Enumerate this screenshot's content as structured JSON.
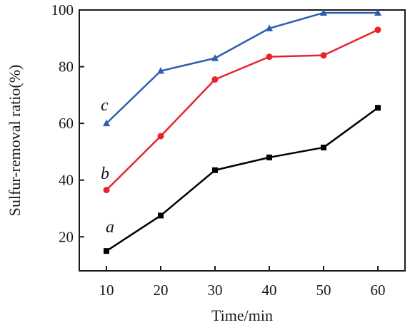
{
  "chart_data": {
    "type": "line",
    "xlabel": "Time/min",
    "ylabel": "Sulfur-removal ratio(%)",
    "xlim": [
      5,
      65
    ],
    "ylim": [
      8,
      100
    ],
    "xticks": [
      10,
      20,
      30,
      40,
      50,
      60
    ],
    "yticks": [
      20,
      40,
      60,
      80,
      100
    ],
    "grid": false,
    "x": [
      10,
      20,
      30,
      40,
      50,
      60
    ],
    "series": [
      {
        "name": "a",
        "marker": "square",
        "color": "#000000",
        "values": [
          15,
          27.5,
          43.5,
          48,
          51.5,
          65.5
        ]
      },
      {
        "name": "b",
        "marker": "circle",
        "color": "#e8232a",
        "values": [
          36.5,
          55.5,
          75.5,
          83.5,
          84,
          93
        ]
      },
      {
        "name": "c",
        "marker": "triangle",
        "color": "#2f5eb0",
        "values": [
          60,
          78.5,
          83,
          93.5,
          99,
          99
        ]
      }
    ]
  }
}
